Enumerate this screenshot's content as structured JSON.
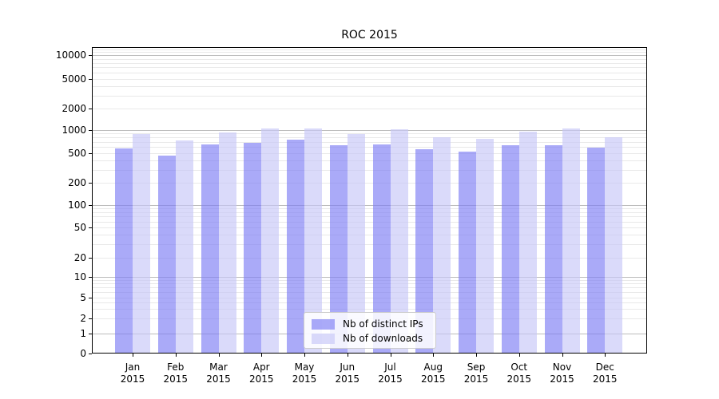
{
  "chart_data": {
    "type": "bar",
    "title": "ROC 2015",
    "categories": [
      {
        "month": "Jan",
        "year": "2015"
      },
      {
        "month": "Feb",
        "year": "2015"
      },
      {
        "month": "Mar",
        "year": "2015"
      },
      {
        "month": "Apr",
        "year": "2015"
      },
      {
        "month": "May",
        "year": "2015"
      },
      {
        "month": "Jun",
        "year": "2015"
      },
      {
        "month": "Jul",
        "year": "2015"
      },
      {
        "month": "Aug",
        "year": "2015"
      },
      {
        "month": "Sep",
        "year": "2015"
      },
      {
        "month": "Oct",
        "year": "2015"
      },
      {
        "month": "Nov",
        "year": "2015"
      },
      {
        "month": "Dec",
        "year": "2015"
      }
    ],
    "series": [
      {
        "name": "Nb of distinct IPs",
        "color": "#7c7cf4",
        "alpha": 0.65,
        "values": [
          580,
          470,
          650,
          680,
          750,
          640,
          650,
          570,
          525,
          635,
          640,
          590
        ]
      },
      {
        "name": "Nb of downloads",
        "color": "#c6c6f7",
        "alpha": 0.65,
        "values": [
          890,
          730,
          920,
          1040,
          1060,
          880,
          1020,
          800,
          770,
          960,
          1060,
          810
        ]
      }
    ],
    "y_axis": {
      "scale": "symlog",
      "range": [
        0,
        12900
      ],
      "ticks": [
        {
          "label": "0",
          "value": 0,
          "pos": 0.0
        },
        {
          "label": "1",
          "value": 1,
          "pos": 0.065
        },
        {
          "label": "2",
          "value": 2,
          "pos": 0.115
        },
        {
          "label": "5",
          "value": 5,
          "pos": 0.182
        },
        {
          "label": "10",
          "value": 10,
          "pos": 0.25
        },
        {
          "label": "20",
          "value": 20,
          "pos": 0.3125
        },
        {
          "label": "50",
          "value": 50,
          "pos": 0.4115
        },
        {
          "label": "100",
          "value": 100,
          "pos": 0.4844
        },
        {
          "label": "200",
          "value": 200,
          "pos": 0.5573
        },
        {
          "label": "500",
          "value": 500,
          "pos": 0.6536
        },
        {
          "label": "1000",
          "value": 1000,
          "pos": 0.7292
        },
        {
          "label": "2000",
          "value": 2000,
          "pos": 0.7995
        },
        {
          "label": "5000",
          "value": 5000,
          "pos": 0.8958
        },
        {
          "label": "10000",
          "value": 10000,
          "pos": 0.974
        }
      ]
    },
    "grid": {
      "major_color": "#bcbcbc",
      "minor_color": "#e9e9e9",
      "vertical": false
    },
    "legend": {
      "position": "lower-center"
    },
    "xlabel": "",
    "ylabel": ""
  }
}
